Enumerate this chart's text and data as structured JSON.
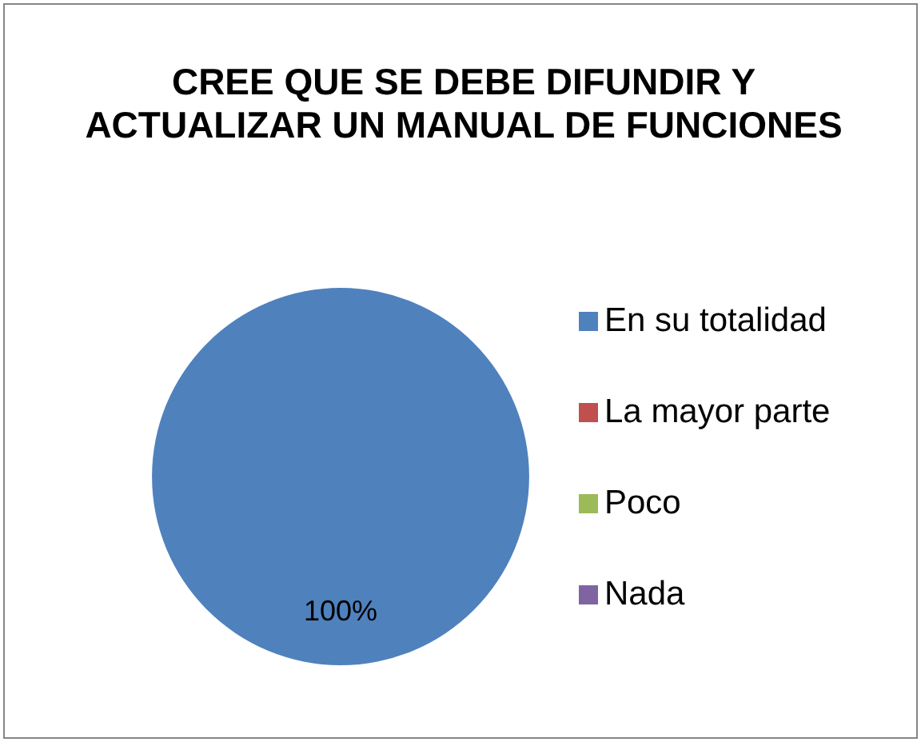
{
  "chart_data": {
    "type": "pie",
    "title": "CREE QUE SE DEBE DIFUNDIR Y ACTUALIZAR UN MANUAL DE FUNCIONES",
    "categories": [
      "En su totalidad",
      "La mayor parte",
      "Poco",
      "Nada"
    ],
    "values": [
      100,
      0,
      0,
      0
    ],
    "colors": [
      "#4f81bd",
      "#c0504d",
      "#9bbb59",
      "#8064a2"
    ],
    "value_labels": [
      "100%",
      null,
      null,
      null
    ],
    "legend": "right"
  }
}
